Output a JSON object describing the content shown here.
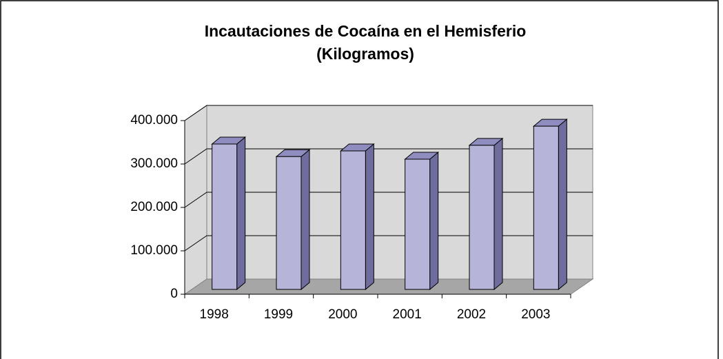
{
  "chart_data": {
    "type": "bar3d",
    "title": [
      "Incautaciones de Cocaína en el Hemisferio",
      "(Kilogramos)"
    ],
    "categories": [
      "1998",
      "1999",
      "2000",
      "2001",
      "2002",
      "2003"
    ],
    "values": [
      335000,
      306000,
      319000,
      300000,
      332000,
      376000
    ],
    "color": "#b6b4d8",
    "ylim": [
      0,
      400000
    ],
    "yticks": [
      0,
      {
        "value": 100000,
        "label": "100.000"
      },
      {
        "value": 200000,
        "label": "200.000"
      },
      {
        "value": 300000,
        "label": "300.000"
      },
      {
        "value": 400000,
        "label": "400.000"
      }
    ],
    "grid": true
  }
}
